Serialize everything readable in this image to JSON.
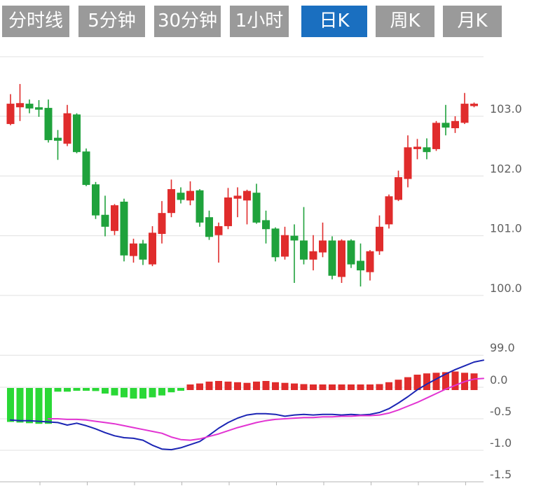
{
  "toolbar": {
    "active_bg": "#1a6fc0",
    "inactive_bg": "#9a9a9a",
    "text_color": "#ffffff",
    "buttons": [
      {
        "id": "time-line",
        "label": "分时线",
        "active": false
      },
      {
        "id": "5min",
        "label": "5分钟",
        "active": false
      },
      {
        "id": "30min",
        "label": "30分钟",
        "active": false
      },
      {
        "id": "1hour",
        "label": "1小时",
        "active": false
      },
      {
        "id": "daily-k",
        "label": "日K",
        "active": true
      },
      {
        "id": "weekly-k",
        "label": "周K",
        "active": false
      },
      {
        "id": "monthly-k",
        "label": "月K",
        "active": false
      }
    ]
  },
  "chart_data": {
    "type": "candlestick",
    "legend_position": "none",
    "grid": true,
    "colors": {
      "up": "#e02c2c",
      "down": "#1fa23c",
      "hist_up": "#e02c2c",
      "hist_down": "#2ad836",
      "dif_line": "#1b25b4",
      "dea_line": "#e234d2",
      "grid_line": "#e0e0e0",
      "axis_line": "#b5b5b5",
      "axis_text": "#606060"
    },
    "price_pane": {
      "ylim": [
        99.0,
        103.97
      ],
      "y_ticks": [
        {
          "value": 103.0,
          "label": "103.0"
        },
        {
          "value": 102.0,
          "label": "102.0"
        },
        {
          "value": 101.0,
          "label": "101.0"
        },
        {
          "value": 100.0,
          "label": "100.0"
        },
        {
          "value": 99.0,
          "label": "99.0"
        }
      ],
      "candles_ohlc": [
        [
          102.87,
          103.37,
          102.85,
          103.21
        ],
        [
          103.15,
          103.54,
          102.92,
          103.22
        ],
        [
          103.21,
          103.28,
          103.05,
          103.13
        ],
        [
          103.15,
          103.27,
          102.99,
          103.11
        ],
        [
          103.14,
          103.28,
          102.56,
          102.6
        ],
        [
          102.64,
          102.77,
          102.27,
          102.59
        ],
        [
          102.54,
          103.19,
          102.5,
          103.05
        ],
        [
          103.03,
          103.05,
          102.38,
          102.4
        ],
        [
          102.41,
          102.46,
          101.83,
          101.85
        ],
        [
          101.86,
          101.9,
          101.28,
          101.34
        ],
        [
          101.35,
          101.67,
          100.99,
          101.15
        ],
        [
          101.08,
          101.53,
          101.01,
          101.51
        ],
        [
          101.57,
          101.62,
          100.57,
          100.67
        ],
        [
          100.66,
          100.95,
          100.55,
          100.87
        ],
        [
          100.87,
          100.93,
          100.51,
          100.6
        ],
        [
          100.52,
          101.16,
          100.49,
          101.05
        ],
        [
          101.03,
          101.58,
          100.87,
          101.38
        ],
        [
          101.38,
          101.94,
          101.31,
          101.78
        ],
        [
          101.72,
          101.81,
          101.54,
          101.6
        ],
        [
          101.59,
          101.91,
          101.51,
          101.75
        ],
        [
          101.76,
          101.78,
          101.15,
          101.22
        ],
        [
          101.31,
          101.42,
          100.93,
          100.98
        ],
        [
          101.01,
          101.22,
          100.55,
          101.16
        ],
        [
          101.16,
          101.8,
          101.11,
          101.64
        ],
        [
          101.62,
          101.81,
          101.31,
          101.67
        ],
        [
          101.59,
          101.77,
          101.19,
          101.75
        ],
        [
          101.72,
          101.87,
          101.2,
          101.22
        ],
        [
          101.26,
          101.42,
          100.87,
          101.11
        ],
        [
          101.12,
          101.14,
          100.57,
          100.64
        ],
        [
          100.65,
          101.15,
          100.6,
          101.01
        ],
        [
          101.0,
          101.19,
          100.21,
          100.92
        ],
        [
          100.92,
          101.48,
          100.52,
          100.6
        ],
        [
          100.6,
          101.01,
          100.42,
          100.74
        ],
        [
          100.72,
          101.22,
          100.64,
          100.92
        ],
        [
          100.92,
          100.99,
          100.27,
          100.33
        ],
        [
          100.31,
          100.94,
          100.21,
          100.92
        ],
        [
          100.92,
          100.94,
          100.46,
          100.52
        ],
        [
          100.58,
          100.87,
          100.15,
          100.42
        ],
        [
          100.39,
          100.76,
          100.25,
          100.74
        ],
        [
          100.74,
          101.34,
          100.68,
          101.15
        ],
        [
          101.19,
          101.69,
          101.12,
          101.66
        ],
        [
          101.6,
          102.09,
          101.58,
          101.98
        ],
        [
          101.95,
          102.68,
          101.81,
          102.48
        ],
        [
          102.45,
          102.62,
          102.28,
          102.49
        ],
        [
          102.48,
          102.63,
          102.28,
          102.4
        ],
        [
          102.45,
          102.92,
          102.42,
          102.89
        ],
        [
          102.89,
          103.19,
          102.68,
          102.81
        ],
        [
          102.8,
          103.0,
          102.72,
          102.92
        ],
        [
          102.89,
          103.39,
          102.87,
          103.21
        ],
        [
          103.17,
          103.23,
          103.15,
          103.21
        ]
      ]
    },
    "macd_pane": {
      "ylim": [
        -1.5,
        0.52
      ],
      "y_ticks": [
        {
          "value": 0.0,
          "label": "0.0"
        },
        {
          "value": -0.5,
          "label": "-0.5"
        },
        {
          "value": -1.0,
          "label": "-1.0"
        },
        {
          "value": -1.5,
          "label": "-1.5"
        }
      ],
      "histogram": [
        -0.55,
        -0.56,
        -0.57,
        -0.58,
        -0.58,
        -0.07,
        -0.07,
        -0.04,
        -0.04,
        -0.06,
        -0.1,
        -0.13,
        -0.16,
        -0.18,
        -0.18,
        -0.16,
        -0.13,
        -0.08,
        -0.05,
        0.04,
        0.06,
        0.09,
        0.1,
        0.09,
        0.08,
        0.07,
        0.09,
        0.1,
        0.08,
        0.07,
        0.06,
        0.05,
        0.04,
        0.03,
        0.03,
        0.03,
        0.02,
        0.03,
        0.03,
        0.05,
        0.08,
        0.12,
        0.16,
        0.2,
        0.22,
        0.23,
        0.24,
        0.25,
        0.23,
        0.22
      ],
      "series": [
        {
          "name": "DIF",
          "values": [
            -0.52,
            -0.53,
            -0.53,
            -0.54,
            -0.55,
            -0.56,
            -0.6,
            -0.57,
            -0.61,
            -0.66,
            -0.72,
            -0.77,
            -0.8,
            -0.81,
            -0.84,
            -0.92,
            -0.98,
            -0.99,
            -0.96,
            -0.91,
            -0.86,
            -0.76,
            -0.65,
            -0.56,
            -0.49,
            -0.44,
            -0.42,
            -0.42,
            -0.43,
            -0.46,
            -0.44,
            -0.43,
            -0.44,
            -0.43,
            -0.43,
            -0.44,
            -0.43,
            -0.44,
            -0.43,
            -0.4,
            -0.34,
            -0.25,
            -0.15,
            -0.04,
            0.05,
            0.13,
            0.21,
            0.28,
            0.34,
            0.4
          ],
          "edge_value": 0.43
        },
        {
          "name": "DEA",
          "values": [
            null,
            null,
            null,
            null,
            -0.5,
            -0.5,
            -0.51,
            -0.51,
            -0.52,
            -0.54,
            -0.56,
            -0.58,
            -0.61,
            -0.64,
            -0.67,
            -0.7,
            -0.73,
            -0.79,
            -0.83,
            -0.84,
            -0.82,
            -0.78,
            -0.74,
            -0.69,
            -0.64,
            -0.6,
            -0.56,
            -0.53,
            -0.51,
            -0.5,
            -0.49,
            -0.48,
            -0.48,
            -0.47,
            -0.47,
            -0.46,
            -0.46,
            -0.45,
            -0.45,
            -0.44,
            -0.41,
            -0.36,
            -0.3,
            -0.24,
            -0.17,
            -0.1,
            -0.03,
            0.03,
            0.09,
            0.13
          ],
          "edge_value": 0.14
        }
      ]
    }
  }
}
